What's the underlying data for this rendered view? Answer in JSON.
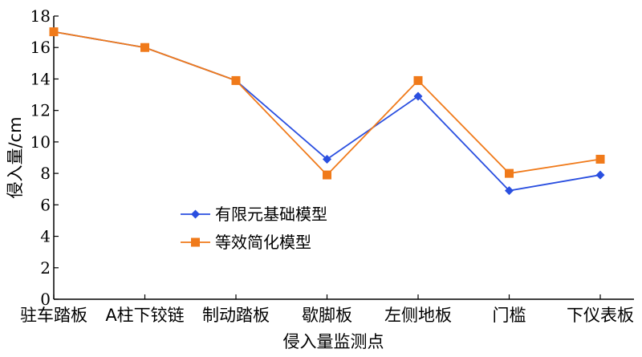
{
  "chart_data": {
    "type": "line",
    "title": "",
    "xlabel": "侵入量监测点",
    "ylabel": "侵入量/cm",
    "ylim": [
      0,
      18
    ],
    "yticks": [
      0,
      2,
      4,
      6,
      8,
      10,
      12,
      14,
      16,
      18
    ],
    "categories": [
      "驻车踏板",
      "A柱下铰链",
      "制动踏板",
      "歇脚板",
      "左侧地板",
      "门槛",
      "下仪表板"
    ],
    "series": [
      {
        "name": "有限元基础模型",
        "color": "#2a4fe0",
        "marker": "diamond",
        "values": [
          17,
          16,
          13.9,
          8.9,
          12.9,
          6.9,
          7.9
        ]
      },
      {
        "name": "等效简化模型",
        "color": "#f07a1a",
        "marker": "square",
        "values": [
          17,
          16,
          13.9,
          7.9,
          13.9,
          8.0,
          8.9
        ]
      }
    ],
    "legend_position": "center-left",
    "grid": false
  }
}
